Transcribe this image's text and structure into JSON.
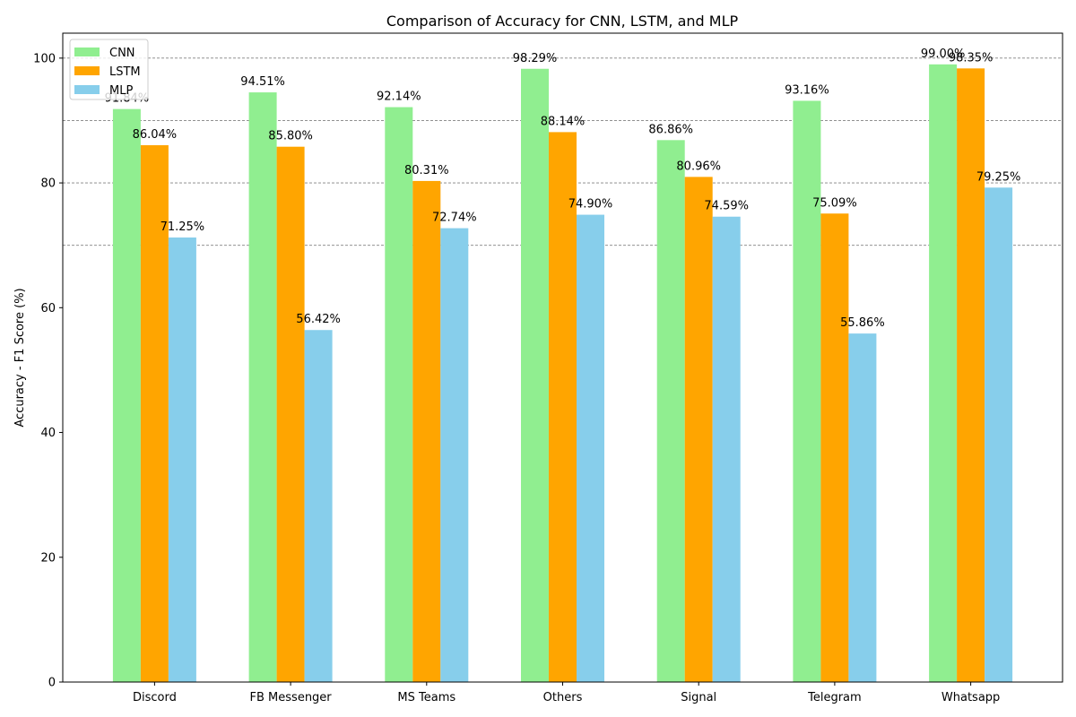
{
  "chart_data": {
    "type": "bar",
    "title": "Comparison of Accuracy for CNN, LSTM, and MLP",
    "xlabel": "",
    "ylabel": "Accuracy - F1 Score (%)",
    "ylim": [
      0,
      104
    ],
    "yticks": [
      0,
      20,
      40,
      60,
      80,
      100
    ],
    "gridlines_y": [
      70,
      80,
      90,
      100
    ],
    "legend_position": "top-left",
    "categories": [
      "Discord",
      "FB Messenger",
      "MS Teams",
      "Others",
      "Signal",
      "Telegram",
      "Whatsapp"
    ],
    "series": [
      {
        "name": "CNN",
        "color": "#90ee90",
        "values": [
          91.84,
          94.51,
          92.14,
          98.29,
          86.86,
          93.16,
          99.0
        ],
        "labels": [
          "91.84%",
          "94.51%",
          "92.14%",
          "98.29%",
          "86.86%",
          "93.16%",
          "99.00%"
        ]
      },
      {
        "name": "LSTM",
        "color": "#ffa500",
        "values": [
          86.04,
          85.8,
          80.31,
          88.14,
          80.96,
          75.09,
          98.35
        ],
        "labels": [
          "86.04%",
          "85.80%",
          "80.31%",
          "88.14%",
          "80.96%",
          "75.09%",
          "98.35%"
        ]
      },
      {
        "name": "MLP",
        "color": "#87ceeb",
        "values": [
          71.25,
          56.42,
          72.74,
          74.9,
          74.59,
          55.86,
          79.25
        ],
        "labels": [
          "71.25%",
          "56.42%",
          "72.74%",
          "74.90%",
          "74.59%",
          "55.86%",
          "79.25%"
        ]
      }
    ]
  }
}
